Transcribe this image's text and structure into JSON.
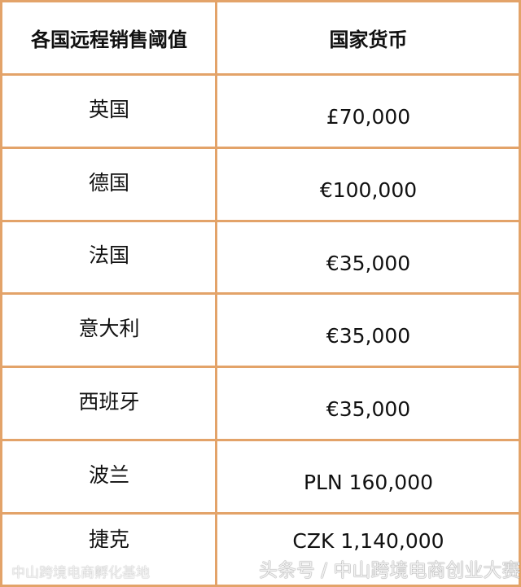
{
  "table": {
    "headers": [
      "各国远程销售阈值",
      "国家货币"
    ],
    "rows": [
      {
        "country": "英国",
        "threshold": "£70,000"
      },
      {
        "country": "德国",
        "threshold": "€100,000"
      },
      {
        "country": "法国",
        "threshold": "€35,000"
      },
      {
        "country": "意大利",
        "threshold": "€35,000"
      },
      {
        "country": "西班牙",
        "threshold": "€35,000"
      },
      {
        "country": "波兰",
        "threshold": "PLN 160,000"
      },
      {
        "country": "捷克",
        "threshold": "CZK 1,140,000"
      }
    ]
  },
  "watermark": {
    "main": "头条号 / 中山跨境电商创业大赛",
    "secondary": "中山跨境电商孵化基地"
  },
  "colors": {
    "border": "#e3a369"
  }
}
